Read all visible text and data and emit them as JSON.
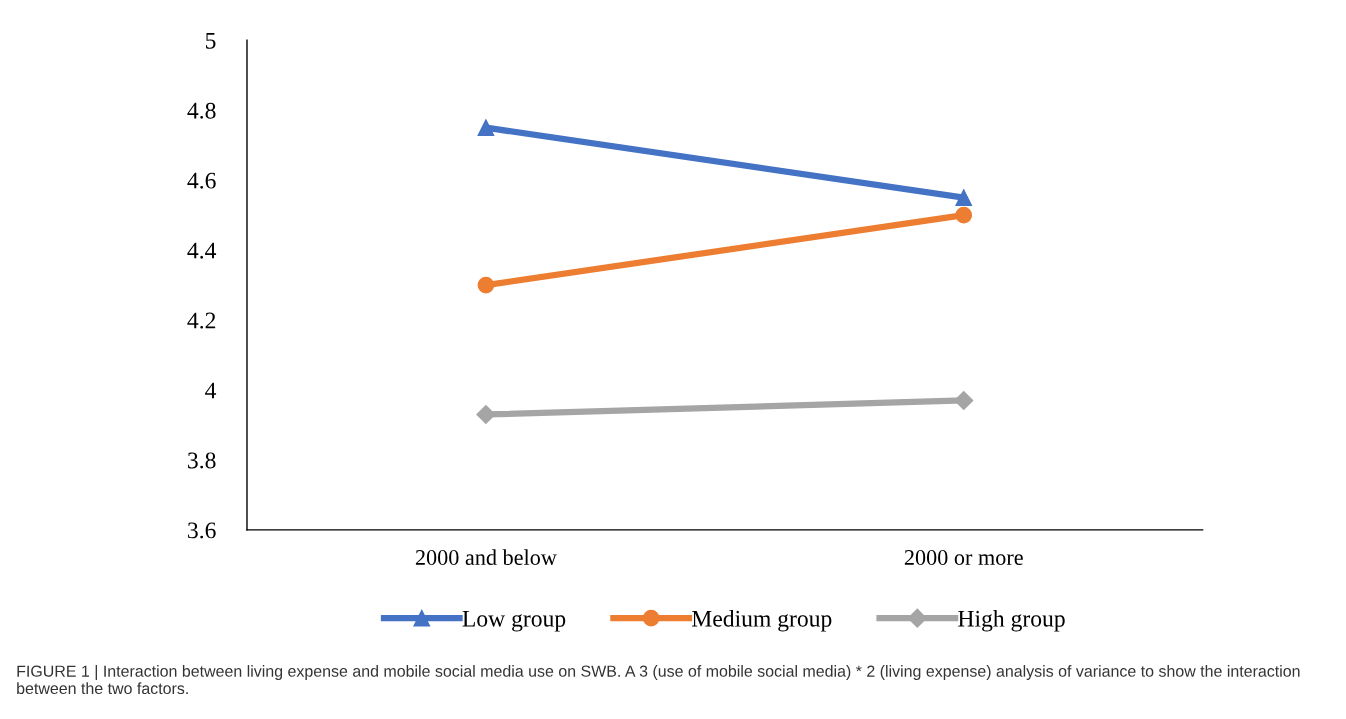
{
  "chart_data": {
    "type": "line",
    "categories": [
      "2000 and below",
      "2000 or more"
    ],
    "series": [
      {
        "name": "Low group",
        "color": "#4472c4",
        "marker": "triangle",
        "values": [
          4.75,
          4.55
        ]
      },
      {
        "name": "Medium group",
        "color": "#ed7d31",
        "marker": "circle",
        "values": [
          4.3,
          4.5
        ]
      },
      {
        "name": "High group",
        "color": "#a5a5a5",
        "marker": "diamond",
        "values": [
          3.93,
          3.97
        ]
      }
    ],
    "ylim": [
      3.6,
      5
    ],
    "yticks": [
      {
        "value": 3.6,
        "label": "3.6"
      },
      {
        "value": 3.8,
        "label": "3.8"
      },
      {
        "value": 4,
        "label": "4"
      },
      {
        "value": 4.2,
        "label": "4.2"
      },
      {
        "value": 4.4,
        "label": "4.4"
      },
      {
        "value": 4.6,
        "label": "4.6"
      },
      {
        "value": 4.8,
        "label": "4.8"
      },
      {
        "value": 5,
        "label": "5"
      }
    ],
    "grid": false,
    "legend": "bottom",
    "line_style": "solid",
    "annotations": [
      "FIGURE 1 | Interaction between living expense and mobile social media use on SWB. A 3 (use of mobile social media) * 2 (living expense) analysis of variance to show the interaction between the two factors."
    ]
  }
}
